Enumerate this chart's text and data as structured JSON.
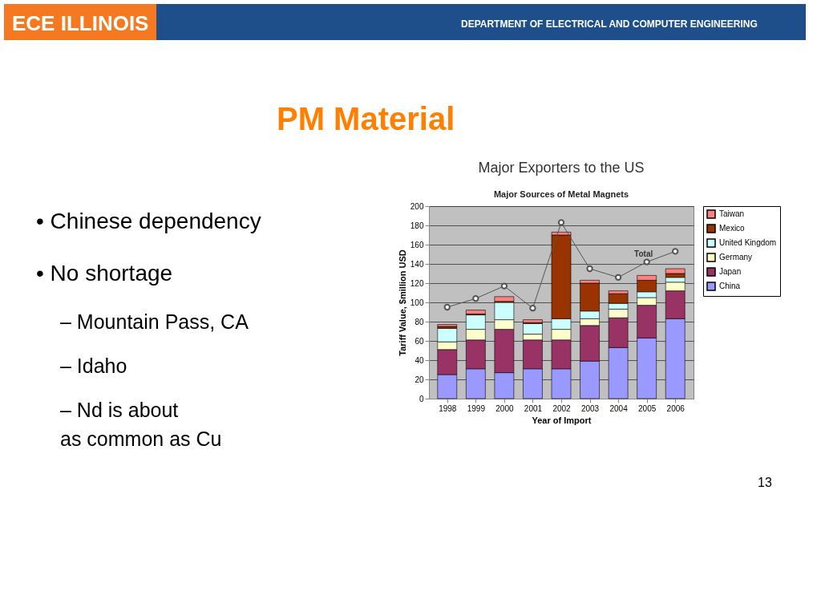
{
  "chart_data": {
    "type": "bar",
    "title": "Major Exporters to the US",
    "subtitle": "Major Sources of Metal Magnets",
    "xlabel": "Year of Import",
    "ylabel": "Tariff Value, $million USD",
    "categories": [
      "1998",
      "1999",
      "2000",
      "2001",
      "2002",
      "2003",
      "2004",
      "2005",
      "2006"
    ],
    "stacked": true,
    "series": [
      {
        "name": "China",
        "color": "#9999ff",
        "values": [
          25,
          31,
          27,
          31,
          31,
          39,
          53,
          63,
          83
        ]
      },
      {
        "name": "Japan",
        "color": "#993366",
        "values": [
          26,
          30,
          45,
          30,
          30,
          37,
          31,
          34,
          29
        ]
      },
      {
        "name": "Germany",
        "color": "#ffffcc",
        "values": [
          8,
          11,
          10,
          6,
          11,
          7,
          9,
          8,
          9
        ]
      },
      {
        "name": "United Kingdom",
        "color": "#ccffff",
        "values": [
          14,
          15,
          18,
          11,
          11,
          8,
          6,
          6,
          5
        ]
      },
      {
        "name": "Mexico",
        "color": "#993300",
        "values": [
          2,
          1,
          1,
          1,
          87,
          29,
          10,
          12,
          4
        ]
      },
      {
        "name": "Taiwan",
        "color": "#ff8080",
        "values": [
          2,
          4,
          5,
          3,
          3,
          3,
          3,
          5,
          5
        ]
      },
      {
        "name": "Total",
        "type": "line",
        "color": "#555555",
        "marker": "circle",
        "values": [
          95,
          104,
          117,
          94,
          183,
          135,
          126,
          142,
          153
        ]
      }
    ],
    "ylim": [
      0,
      200
    ],
    "yticks": [
      0,
      20,
      40,
      60,
      80,
      100,
      120,
      140,
      160,
      180,
      200
    ],
    "grid": "y",
    "legend": "right",
    "annotations": [
      "ECE ILLINOIS",
      "DEPARTMENT OF ELECTRICAL AND COMPUTER ENGINEERING",
      "PM Material",
      "• Chinese dependency",
      "• No shortage",
      "– Mountain Pass, CA",
      "– Idaho",
      "– Nd is about as common as Cu",
      "13"
    ]
  }
}
